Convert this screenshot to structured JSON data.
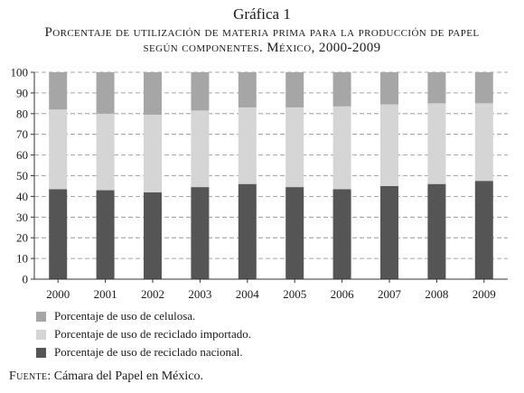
{
  "figure_label": "Gráfica 1",
  "title_line1": "Porcentaje de utilización de materia prima para la producción de papel",
  "title_line2": "según componentes. México, 2000-2009",
  "source_label": "Fuente",
  "source_text": ": Cámara del Papel en México.",
  "colors": {
    "celulosa": "#a6a6a6",
    "reciclado_importado": "#d5d5d5",
    "reciclado_nacional": "#555555",
    "axis": "#333333",
    "grid": "#8c8c8c"
  },
  "chart_data": {
    "type": "bar",
    "stacked": true,
    "categories": [
      "2000",
      "2001",
      "2002",
      "2003",
      "2004",
      "2005",
      "2006",
      "2007",
      "2008",
      "2009"
    ],
    "series": [
      {
        "name": "Porcentaje de uso de reciclado nacional.",
        "key": "reciclado_nacional",
        "values": [
          43.5,
          43,
          42,
          44.5,
          46,
          44.5,
          43.5,
          45,
          46,
          47.5
        ]
      },
      {
        "name": "Porcentaje de uso de reciclado importado.",
        "key": "reciclado_importado",
        "values": [
          38.5,
          37,
          37.5,
          37,
          37,
          38.5,
          40,
          39.5,
          39,
          37.5
        ]
      },
      {
        "name": "Porcentaje de uso de celulosa.",
        "key": "celulosa",
        "values": [
          18,
          20,
          20.5,
          18.5,
          17,
          17,
          16.5,
          15.5,
          15,
          15
        ]
      }
    ],
    "yticks": [
      "0",
      "10",
      "20",
      "30",
      "40",
      "50",
      "60",
      "70",
      "80",
      "90",
      "100"
    ],
    "ylim": [
      0,
      100
    ],
    "grid": "dashed horizontal",
    "legend_order": [
      "celulosa",
      "reciclado_importado",
      "reciclado_nacional"
    ],
    "legend_placement": "bottom-left"
  }
}
